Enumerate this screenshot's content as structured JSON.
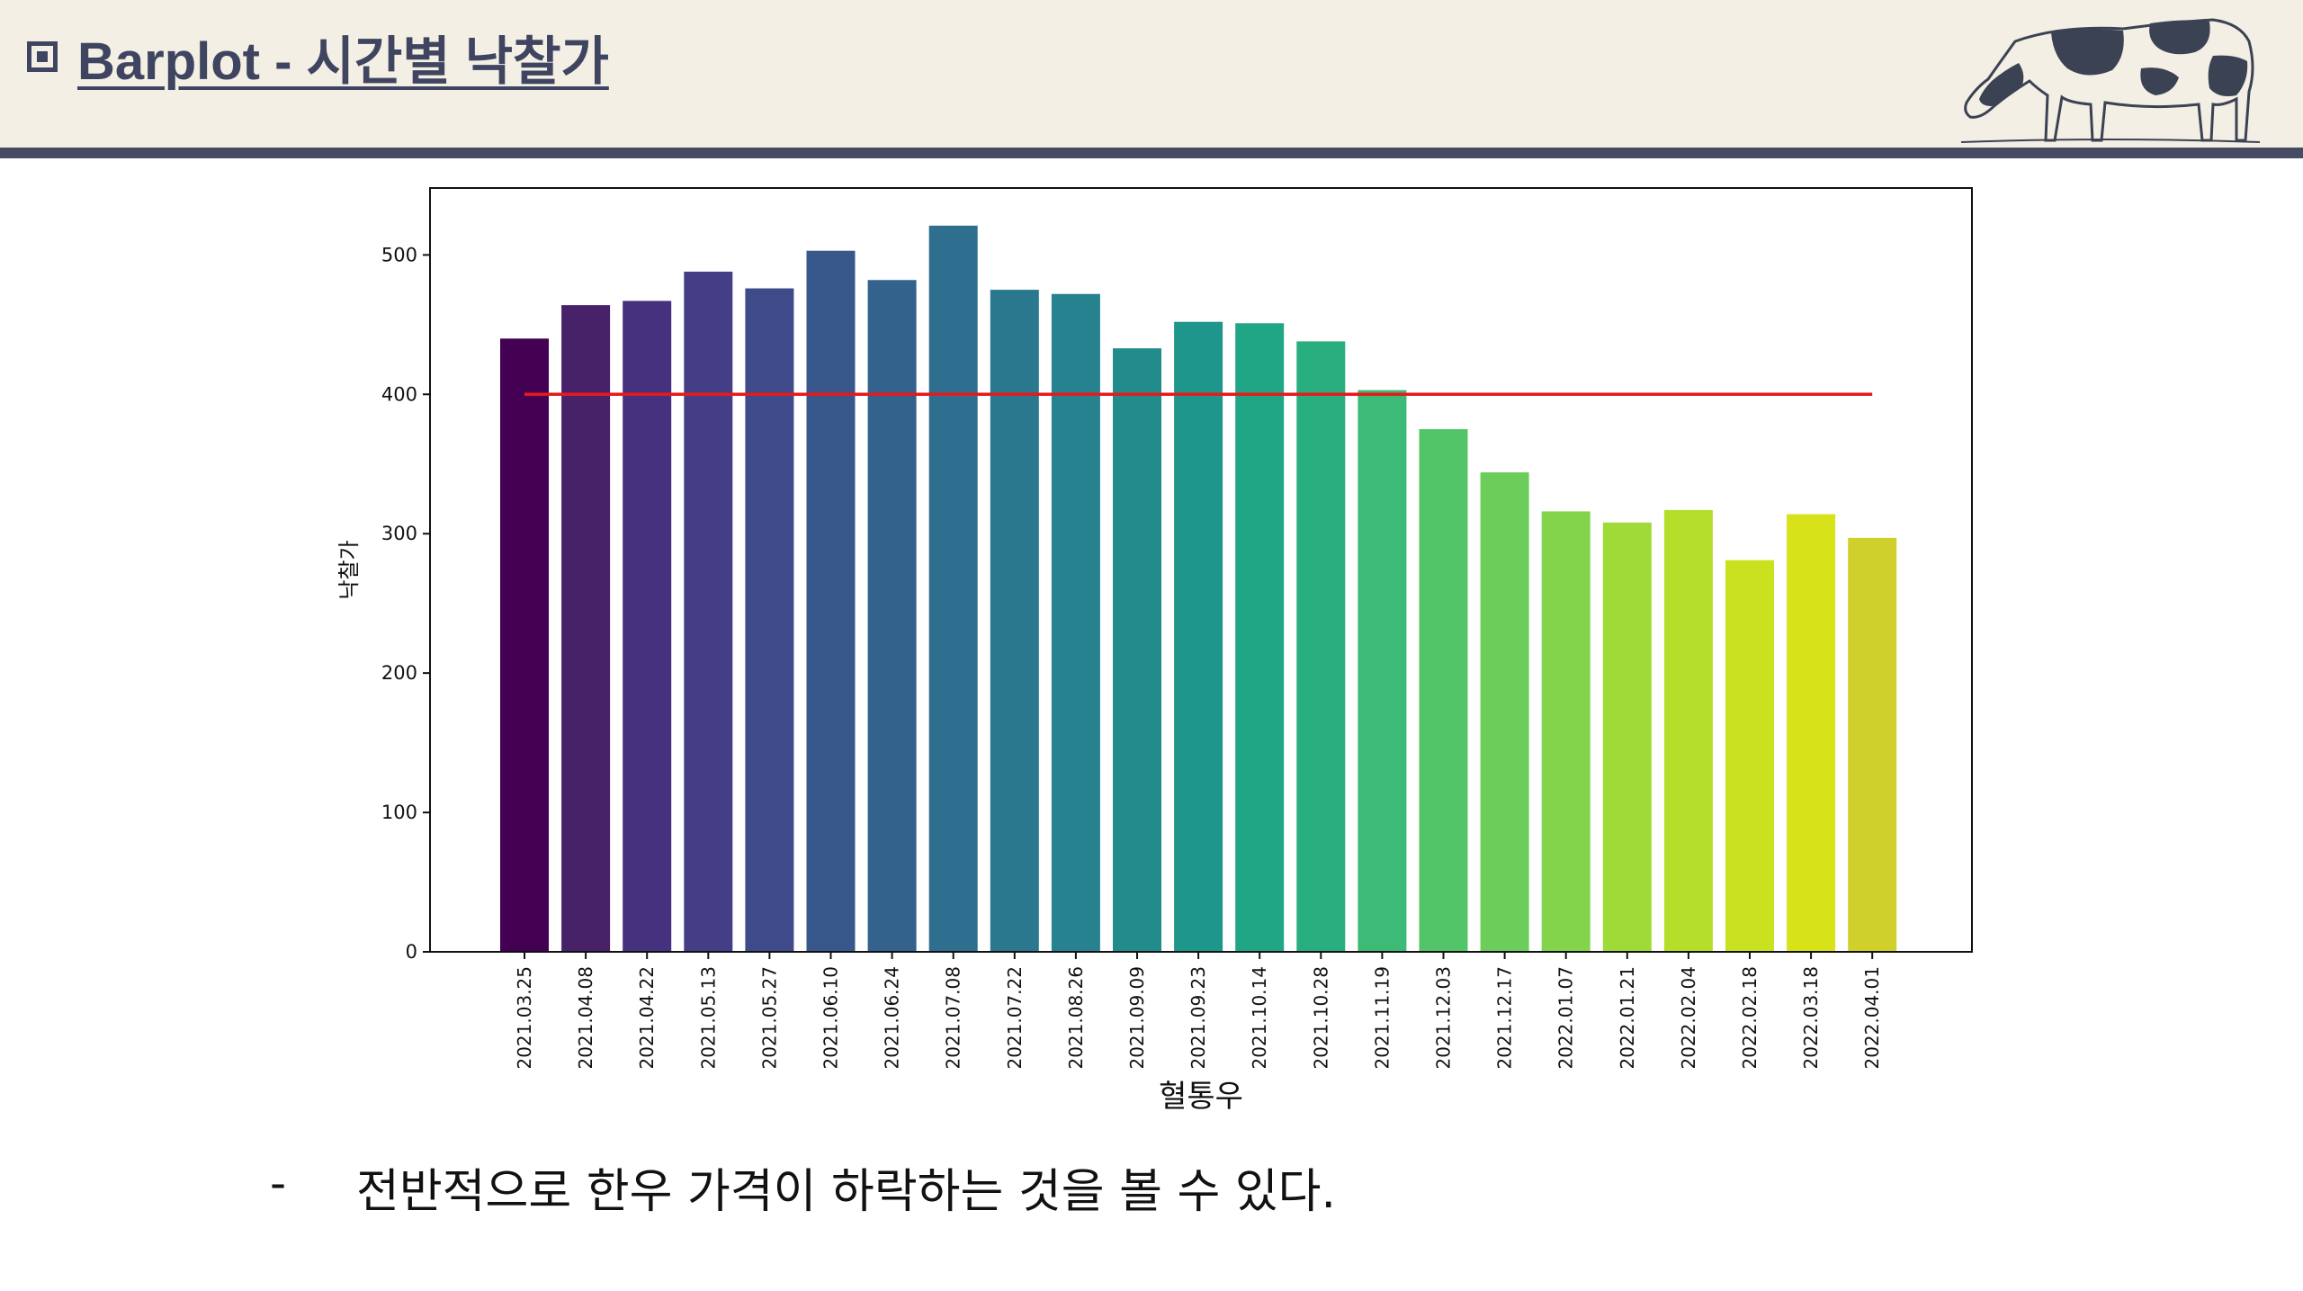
{
  "header": {
    "title": "Barplot - 시간별 낙찰가",
    "title_icon": "square-bullet-icon",
    "logo_icon": "cow-icon"
  },
  "colors": {
    "header_bg": "#f3efe4",
    "header_rule": "#454c63",
    "title_text": "#3f4560",
    "reference_line": "#e41a1c"
  },
  "chart_data": {
    "type": "bar",
    "title": "",
    "xlabel": "혈통우",
    "ylabel": "낙찰가",
    "ylim": [
      0,
      548
    ],
    "yticks": [
      0,
      100,
      200,
      300,
      400,
      500
    ],
    "categories": [
      "2021.03.25",
      "2021.04.08",
      "2021.04.22",
      "2021.05.13",
      "2021.05.27",
      "2021.06.10",
      "2021.06.24",
      "2021.07.08",
      "2021.07.22",
      "2021.08.26",
      "2021.09.09",
      "2021.09.23",
      "2021.10.14",
      "2021.10.28",
      "2021.11.19",
      "2021.12.03",
      "2021.12.17",
      "2022.01.07",
      "2022.01.21",
      "2022.02.04",
      "2022.02.18",
      "2022.03.18",
      "2022.04.01"
    ],
    "values": [
      440,
      464,
      467,
      488,
      476,
      503,
      482,
      521,
      475,
      472,
      433,
      452,
      451,
      438,
      403,
      375,
      344,
      316,
      308,
      317,
      281,
      314,
      297
    ],
    "colors": [
      "#440154",
      "#472269",
      "#46317e",
      "#433e85",
      "#3e4a89",
      "#38588c",
      "#33628d",
      "#2e6e8e",
      "#2a788e",
      "#26828e",
      "#228c8d",
      "#1f968b",
      "#21a685",
      "#29af7f",
      "#3bbb75",
      "#52c569",
      "#6ccd5a",
      "#84d44b",
      "#a0da39",
      "#b5de2b",
      "#cae11f",
      "#d8e219",
      "#cfd02b"
    ],
    "reference_line": {
      "y": 400
    },
    "grid": false,
    "legend": "none"
  },
  "caption": {
    "bullet": "-",
    "text": "전반적으로 한우 가격이 하락하는 것을 볼 수 있다."
  }
}
